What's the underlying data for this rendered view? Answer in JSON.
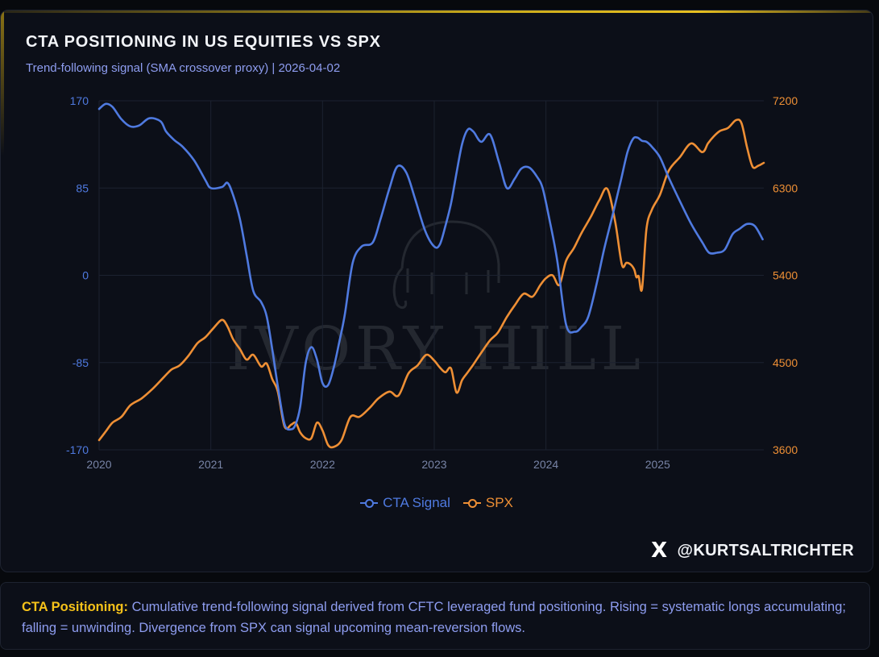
{
  "chart": {
    "title": "CTA POSITIONING IN US EQUITIES VS SPX",
    "subtitle": "Trend-following signal (SMA crossover proxy) | 2026-04-02",
    "watermark": "IVORY HILL",
    "handle": "@KURTSALTRICHTER",
    "x_logo": "X"
  },
  "note": {
    "label": "CTA Positioning:",
    "text": "Cumulative trend-following signal derived from CFTC leveraged fund positioning. Rising = systematic longs accumulating; falling = unwinding. Divergence from SPX can signal upcoming mean-reversion flows."
  },
  "colors": {
    "background": "#0c0f18",
    "cta": "#4f7ae0",
    "spx": "#ee8f35",
    "grid": "#1c2230",
    "accent": "#f6c21a",
    "subtitle": "#8e9df0"
  },
  "chart_data": {
    "type": "line",
    "title": "CTA POSITIONING IN US EQUITIES VS SPX",
    "xlabel": "",
    "ylabel_left": "CTA Signal",
    "ylabel_right": "SPX",
    "x_ticks": [
      "2020",
      "2021",
      "2022",
      "2023",
      "2024",
      "2025"
    ],
    "x_range": [
      2020.0,
      2025.95
    ],
    "y_left": {
      "ticks": [
        "170",
        "85",
        "0",
        "-85",
        "-170"
      ],
      "ylim": [
        -170,
        170
      ]
    },
    "y_right": {
      "ticks": [
        "7200",
        "6300",
        "5400",
        "4500",
        "3600"
      ],
      "ylim": [
        3600,
        7200
      ]
    },
    "legend": [
      "CTA Signal",
      "SPX"
    ],
    "legend_position": "bottom-center",
    "grid": true,
    "series": [
      {
        "name": "CTA Signal",
        "axis": "left",
        "x": [
          2020.0,
          2020.06,
          2020.12,
          2020.2,
          2020.28,
          2020.36,
          2020.45,
          2020.55,
          2020.6,
          2020.67,
          2020.75,
          2020.85,
          2020.95,
          2021.0,
          2021.1,
          2021.15,
          2021.2,
          2021.26,
          2021.32,
          2021.38,
          2021.45,
          2021.5,
          2021.55,
          2021.6,
          2021.66,
          2021.72,
          2021.76,
          2021.8,
          2021.85,
          2021.9,
          2021.95,
          2022.0,
          2022.05,
          2022.1,
          2022.15,
          2022.2,
          2022.27,
          2022.35,
          2022.45,
          2022.52,
          2022.6,
          2022.67,
          2022.75,
          2022.83,
          2022.92,
          2023.0,
          2023.05,
          2023.1,
          2023.15,
          2023.2,
          2023.25,
          2023.3,
          2023.35,
          2023.42,
          2023.5,
          2023.58,
          2023.65,
          2023.72,
          2023.78,
          2023.85,
          2023.92,
          2023.97,
          2024.03,
          2024.1,
          2024.18,
          2024.26,
          2024.32,
          2024.38,
          2024.45,
          2024.52,
          2024.6,
          2024.67,
          2024.73,
          2024.78,
          2024.82,
          2024.86,
          2024.9,
          2024.95,
          2025.02,
          2025.1,
          2025.2,
          2025.3,
          2025.4,
          2025.46,
          2025.53,
          2025.6,
          2025.67,
          2025.73,
          2025.8,
          2025.87,
          2025.94
        ],
        "y": [
          162,
          167,
          164,
          152,
          145,
          146,
          153,
          150,
          140,
          132,
          125,
          112,
          93,
          85,
          86,
          90,
          78,
          55,
          20,
          -15,
          -26,
          -40,
          -72,
          -108,
          -145,
          -150,
          -145,
          -128,
          -85,
          -70,
          -82,
          -105,
          -107,
          -90,
          -65,
          -38,
          12,
          28,
          32,
          55,
          85,
          106,
          100,
          74,
          43,
          28,
          30,
          48,
          70,
          100,
          128,
          142,
          140,
          130,
          137,
          110,
          85,
          94,
          104,
          105,
          96,
          85,
          55,
          15,
          -48,
          -55,
          -50,
          -40,
          -10,
          25,
          60,
          92,
          120,
          133,
          134,
          131,
          130,
          125,
          115,
          95,
          72,
          50,
          32,
          22,
          22,
          25,
          40,
          45,
          50,
          48,
          35
        ]
      },
      {
        "name": "SPX",
        "axis": "right",
        "x": [
          2020.0,
          2020.06,
          2020.12,
          2020.2,
          2020.28,
          2020.38,
          2020.48,
          2020.58,
          2020.65,
          2020.72,
          2020.8,
          2020.88,
          2020.95,
          2021.02,
          2021.1,
          2021.15,
          2021.2,
          2021.26,
          2021.32,
          2021.38,
          2021.45,
          2021.5,
          2021.55,
          2021.6,
          2021.66,
          2021.72,
          2021.76,
          2021.8,
          2021.85,
          2021.9,
          2021.95,
          2022.0,
          2022.05,
          2022.1,
          2022.17,
          2022.25,
          2022.33,
          2022.42,
          2022.5,
          2022.6,
          2022.68,
          2022.77,
          2022.85,
          2022.93,
          2023.0,
          2023.05,
          2023.1,
          2023.15,
          2023.2,
          2023.25,
          2023.3,
          2023.35,
          2023.42,
          2023.5,
          2023.57,
          2023.65,
          2023.72,
          2023.8,
          2023.88,
          2023.95,
          2024.0,
          2024.06,
          2024.12,
          2024.18,
          2024.25,
          2024.32,
          2024.4,
          2024.48,
          2024.55,
          2024.62,
          2024.68,
          2024.72,
          2024.76,
          2024.79,
          2024.81,
          2024.83,
          2024.86,
          2024.9,
          2024.95,
          2025.02,
          2025.1,
          2025.2,
          2025.3,
          2025.4,
          2025.45,
          2025.5,
          2025.56,
          2025.63,
          2025.7,
          2025.75,
          2025.8,
          2025.85,
          2025.9,
          2025.95
        ],
        "y": [
          3700,
          3790,
          3880,
          3940,
          4060,
          4130,
          4230,
          4350,
          4430,
          4470,
          4570,
          4700,
          4760,
          4850,
          4940,
          4870,
          4740,
          4640,
          4530,
          4580,
          4460,
          4490,
          4330,
          4200,
          3840,
          3860,
          3880,
          3780,
          3720,
          3720,
          3880,
          3800,
          3650,
          3630,
          3700,
          3940,
          3940,
          4030,
          4130,
          4200,
          4160,
          4390,
          4470,
          4580,
          4520,
          4450,
          4400,
          4440,
          4190,
          4320,
          4400,
          4480,
          4600,
          4730,
          4810,
          4970,
          5090,
          5210,
          5180,
          5300,
          5370,
          5400,
          5300,
          5550,
          5680,
          5840,
          6000,
          6180,
          6290,
          5950,
          5510,
          5530,
          5510,
          5460,
          5380,
          5390,
          5260,
          5880,
          6080,
          6230,
          6480,
          6620,
          6760,
          6670,
          6760,
          6830,
          6890,
          6920,
          7000,
          6970,
          6720,
          6520,
          6530,
          6560
        ]
      }
    ]
  }
}
